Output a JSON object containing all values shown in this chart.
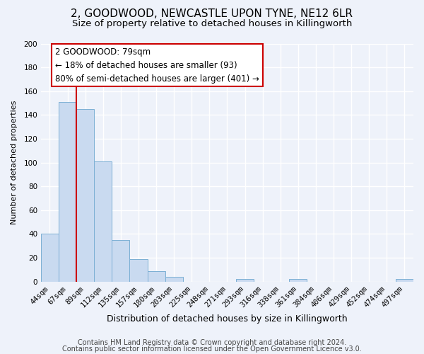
{
  "title": "2, GOODWOOD, NEWCASTLE UPON TYNE, NE12 6LR",
  "subtitle": "Size of property relative to detached houses in Killingworth",
  "xlabel": "Distribution of detached houses by size in Killingworth",
  "ylabel": "Number of detached properties",
  "bar_labels": [
    "44sqm",
    "67sqm",
    "89sqm",
    "112sqm",
    "135sqm",
    "157sqm",
    "180sqm",
    "203sqm",
    "225sqm",
    "248sqm",
    "271sqm",
    "293sqm",
    "316sqm",
    "338sqm",
    "361sqm",
    "384sqm",
    "406sqm",
    "429sqm",
    "452sqm",
    "474sqm",
    "497sqm"
  ],
  "bar_values": [
    40,
    151,
    145,
    101,
    35,
    19,
    9,
    4,
    0,
    0,
    0,
    2,
    0,
    0,
    2,
    0,
    0,
    0,
    0,
    0,
    2
  ],
  "bar_color": "#c9daf0",
  "bar_edge_color": "#7bafd4",
  "annotation_title": "2 GOODWOOD: 79sqm",
  "annotation_line1": "← 18% of detached houses are smaller (93)",
  "annotation_line2": "80% of semi-detached houses are larger (401) →",
  "annotation_box_color": "#ffffff",
  "annotation_box_edge": "#cc0000",
  "ylim": [
    0,
    200
  ],
  "yticks": [
    0,
    20,
    40,
    60,
    80,
    100,
    120,
    140,
    160,
    180,
    200
  ],
  "footer_line1": "Contains HM Land Registry data © Crown copyright and database right 2024.",
  "footer_line2": "Contains public sector information licensed under the Open Government Licence v3.0.",
  "bg_color": "#eef2fa",
  "grid_color": "#ffffff",
  "title_fontsize": 11,
  "subtitle_fontsize": 9.5,
  "xlabel_fontsize": 9,
  "ylabel_fontsize": 8,
  "tick_fontsize": 7.5,
  "footer_fontsize": 7,
  "ann_fontsize": 8.5
}
